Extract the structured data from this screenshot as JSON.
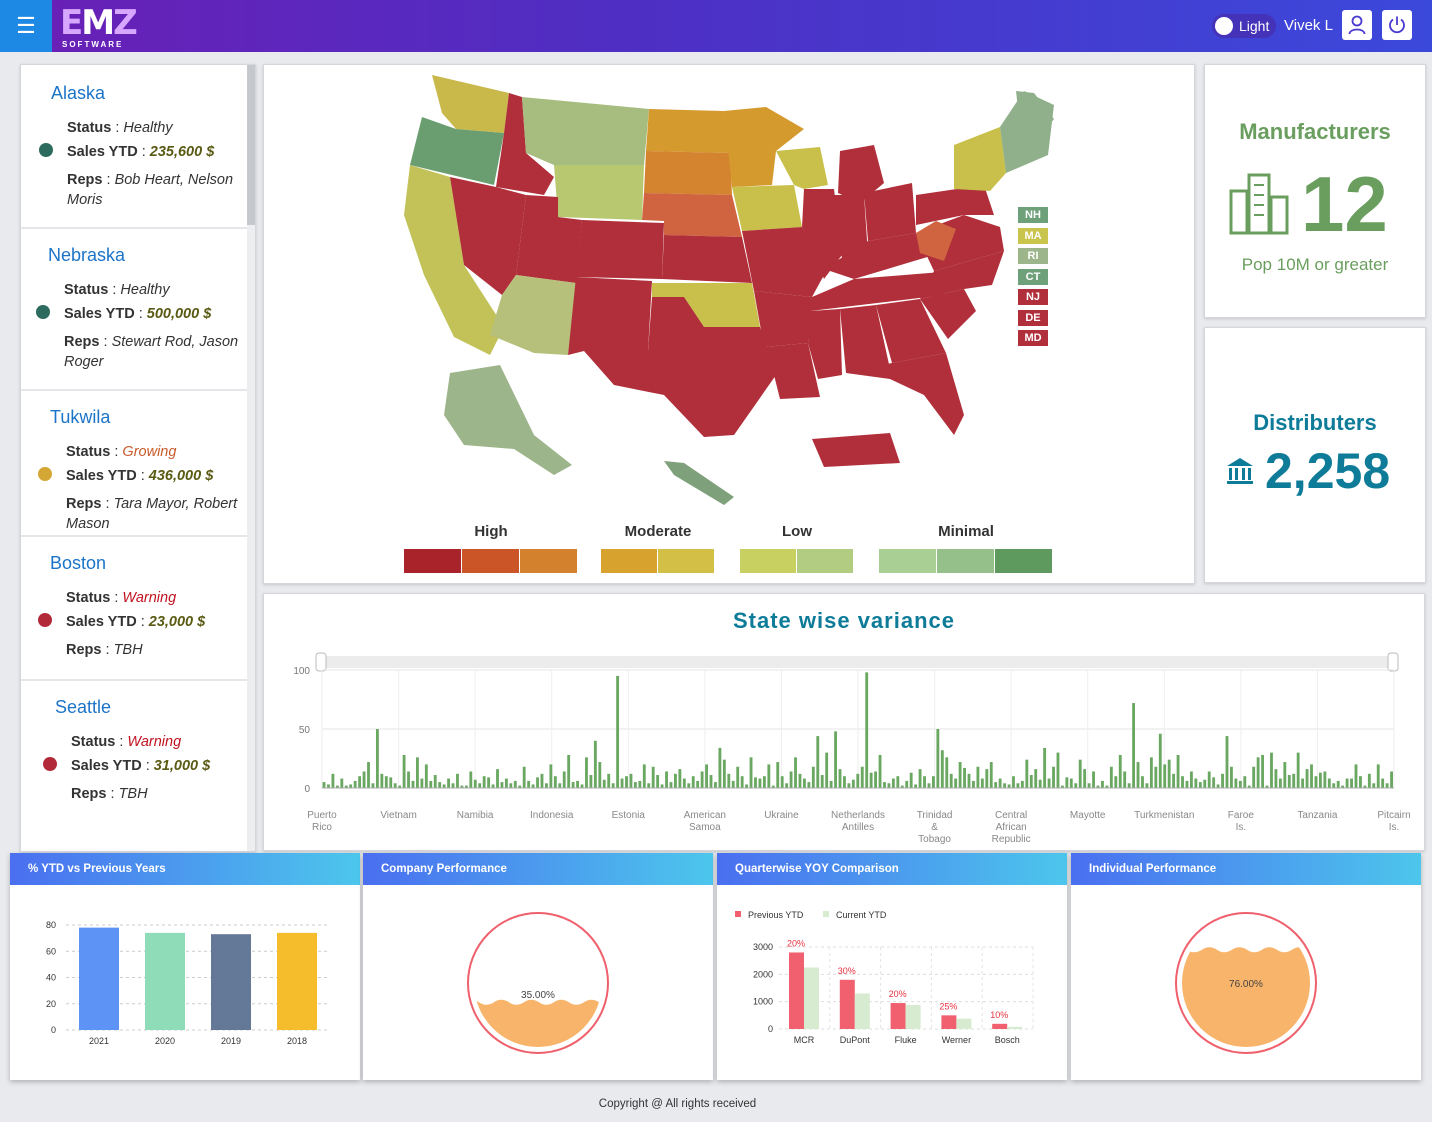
{
  "header": {
    "logo_text_a": "E",
    "logo_text_b": "M",
    "logo_text_c": "Z",
    "logo_sub": "SOFTWARE",
    "theme_label": "Light",
    "user_name": "Vivek L",
    "menu_icon": "hamburger-icon",
    "user_icon": "user-icon",
    "power_icon": "power-icon"
  },
  "locations": [
    {
      "name": "Alaska",
      "status": "Healthy",
      "sales": "235,600 $",
      "reps1": "Bob Heart, Nelson",
      "reps2": "Moris",
      "dot": "#2d6b5e",
      "status_color": "#333333"
    },
    {
      "name": "Nebraska",
      "status": "Healthy",
      "sales": "500,000 $",
      "reps1": "Stewart Rod, Jason",
      "reps2": "Roger",
      "dot": "#2d6b5e",
      "status_color": "#333333"
    },
    {
      "name": "Tukwila",
      "status": "Growing",
      "sales": "436,000 $",
      "reps1": "Tara Mayor, Robert",
      "reps2": "Mason",
      "dot": "#d4a634",
      "status_color": "#c85a2c"
    },
    {
      "name": "Boston",
      "status": "Warning",
      "sales": "23,000 $",
      "reps1": "TBH",
      "reps2": "",
      "dot": "#b22a3a",
      "status_color": "#c0121f"
    },
    {
      "name": "Seattle",
      "status": "Warning",
      "sales": "31,000 $",
      "reps1": "TBH",
      "reps2": "",
      "dot": "#b22a3a",
      "status_color": "#c0121f"
    }
  ],
  "labels": {
    "status": "Status",
    "sales": "Sales YTD",
    "reps": "Reps",
    "sep": ":"
  },
  "map": {
    "small_states": [
      {
        "code": "NH",
        "color": "#6ea07a"
      },
      {
        "code": "MA",
        "color": "#c9c44c"
      },
      {
        "code": "RI",
        "color": "#9db58a"
      },
      {
        "code": "CT",
        "color": "#6ea07a"
      },
      {
        "code": "NJ",
        "color": "#b02f3a"
      },
      {
        "code": "DE",
        "color": "#b02f3a"
      },
      {
        "code": "MD",
        "color": "#b02f3a"
      }
    ],
    "legend": [
      {
        "label": "High",
        "colors": [
          "#a8232a",
          "#cc5528",
          "#d4812e"
        ]
      },
      {
        "label": "Moderate",
        "colors": [
          "#d8a22e",
          "#d3bf45"
        ]
      },
      {
        "label": "Low",
        "colors": [
          "#c9d062",
          "#b2cc82"
        ]
      },
      {
        "label": "Minimal",
        "colors": [
          "#a9cf94",
          "#95c08a",
          "#5e9a5e"
        ]
      }
    ]
  },
  "manufacturers": {
    "title": "Manufacturers",
    "value": "12",
    "subtitle": "Pop 10M or greater",
    "icon": "buildings-icon",
    "color": "#6a9e5e"
  },
  "distributers": {
    "title": "Distributers",
    "value": "2,258",
    "icon": "bank-icon",
    "color": "#0e7c99"
  },
  "variance": {
    "title": "State wise variance"
  },
  "chart_data": [
    {
      "type": "bar",
      "title": "State wise variance",
      "ylim": [
        0,
        100
      ],
      "yticks": [
        0,
        50,
        100
      ],
      "grid": true,
      "x_tick_labels": [
        "Puerto Rico",
        "Vietnam",
        "Namibia",
        "Indonesia",
        "Estonia",
        "American Samoa",
        "Ukraine",
        "Netherlands Antilles",
        "Trinidad & Tobago",
        "Central African Republic",
        "Mayotte",
        "Turkmenistan",
        "Faroe Is.",
        "Tanzania",
        "Pitcairn Is."
      ],
      "values": [
        5,
        3,
        12,
        2,
        8,
        2,
        3,
        6,
        10,
        14,
        22,
        4,
        50,
        12,
        10,
        9,
        4,
        2,
        28,
        14,
        6,
        26,
        8,
        20,
        6,
        11,
        5,
        3,
        8,
        4,
        12,
        2,
        2,
        14,
        7,
        4,
        10,
        9,
        3,
        16,
        5,
        8,
        4,
        6,
        2,
        18,
        6,
        3,
        9,
        12,
        4,
        20,
        10,
        4,
        14,
        28,
        5,
        6,
        3,
        26,
        11,
        40,
        22,
        7,
        12,
        4,
        95,
        8,
        10,
        12,
        5,
        6,
        20,
        4,
        18,
        11,
        3,
        14,
        5,
        12,
        16,
        8,
        4,
        10,
        6,
        14,
        20,
        11,
        5,
        34,
        24,
        12,
        6,
        18,
        10,
        3,
        26,
        9,
        8,
        10,
        20,
        2,
        22,
        10,
        4,
        14,
        26,
        12,
        8,
        5,
        18,
        44,
        11,
        30,
        6,
        48,
        16,
        10,
        4,
        7,
        12,
        18,
        98,
        13,
        14,
        28,
        5,
        4,
        8,
        10,
        2,
        6,
        13,
        3,
        16,
        10,
        4,
        10,
        50,
        32,
        26,
        12,
        8,
        22,
        17,
        12,
        6,
        18,
        8,
        16,
        22,
        5,
        8,
        4,
        3,
        10,
        4,
        6,
        24,
        11,
        16,
        7,
        34,
        8,
        18,
        30,
        2,
        9,
        8,
        4,
        24,
        16,
        4,
        14,
        2,
        6,
        2,
        18,
        10,
        28,
        14,
        4,
        72,
        22,
        10,
        4,
        26,
        18,
        46,
        20,
        24,
        12,
        28,
        10,
        6,
        14,
        8,
        5,
        7,
        14,
        9,
        3,
        12,
        44,
        18,
        8,
        6,
        10,
        2,
        18,
        26,
        28,
        2,
        30,
        16,
        8,
        22,
        11,
        12,
        30,
        8,
        16,
        20,
        10,
        13,
        14,
        8,
        4,
        6,
        2,
        8,
        8,
        20,
        10,
        2,
        12,
        4,
        20,
        8,
        4,
        14
      ],
      "series_color": "#6aa862"
    },
    {
      "type": "bar",
      "title": "% YTD vs Previous Years",
      "categories": [
        "2021",
        "2020",
        "2019",
        "2018"
      ],
      "values": [
        78,
        74,
        73,
        74
      ],
      "colors": [
        "#5c93f5",
        "#8fddb8",
        "#647898",
        "#f5bd2c"
      ],
      "ylim": [
        0,
        80
      ],
      "yticks": [
        0,
        20,
        40,
        60,
        80
      ],
      "grid": true
    },
    {
      "type": "pie",
      "title": "Company Performance",
      "values": [
        35.0
      ],
      "value_label": "35.00%",
      "fill_color": "#f8b46a"
    },
    {
      "type": "bar",
      "title": "Quarterwise YOY Comparison",
      "categories": [
        "MCR",
        "DuPont",
        "Fluke",
        "Werner",
        "Bosch"
      ],
      "series": [
        {
          "name": "Previous YTD",
          "values": [
            2800,
            1800,
            950,
            500,
            190
          ],
          "color": "#f1606f"
        },
        {
          "name": "Current YTD",
          "values": [
            2250,
            1300,
            880,
            380,
            80
          ],
          "color": "#d6ebd0"
        }
      ],
      "data_labels": [
        "20%",
        "30%",
        "20%",
        "25%",
        "10%"
      ],
      "ylim": [
        0,
        3000
      ],
      "yticks": [
        0,
        1000,
        2000,
        3000
      ],
      "legend": "top-left"
    },
    {
      "type": "pie",
      "title": "Individual Performance",
      "values": [
        76.0
      ],
      "value_label": "76.00%",
      "fill_color": "#f8b46a"
    }
  ],
  "cards": {
    "ytd_title": "% YTD vs Previous Years",
    "company_title": "Company Performance",
    "quarter_title": "Quarterwise YOY Comparison",
    "individual_title": "Individual Performance"
  },
  "footer": {
    "text": "Copyright @  All rights received"
  }
}
